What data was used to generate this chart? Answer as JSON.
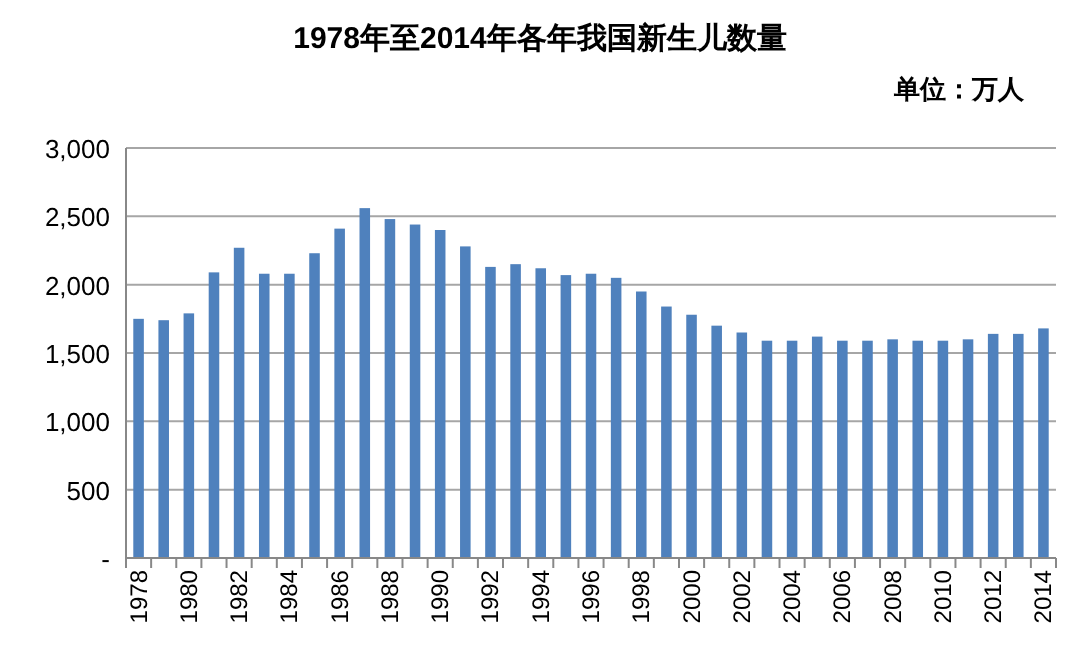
{
  "chart_data": {
    "type": "bar",
    "title": "1978年至2014年各年我国新生儿数量",
    "annotations": [
      "单位：万人"
    ],
    "categories": [
      "1978",
      null,
      "1980",
      null,
      "1982",
      null,
      "1984",
      null,
      "1986",
      null,
      "1988",
      null,
      "1990",
      null,
      "1992",
      null,
      "1994",
      null,
      "1996",
      null,
      "1998",
      null,
      "2000",
      null,
      "2002",
      null,
      "2004",
      null,
      "2006",
      null,
      "2008",
      null,
      "2010",
      null,
      "2012",
      null,
      "2014"
    ],
    "values": [
      1750,
      1740,
      1790,
      2090,
      2270,
      2080,
      2080,
      2230,
      2410,
      2560,
      2480,
      2440,
      2400,
      2280,
      2130,
      2150,
      2120,
      2070,
      2080,
      2050,
      1950,
      1840,
      1780,
      1700,
      1650,
      1590,
      1590,
      1620,
      1590,
      1590,
      1600,
      1590,
      1590,
      1600,
      1640,
      1640,
      1680
    ],
    "color": "#4f81bd",
    "ylim": [
      0,
      3000
    ],
    "yticks": [
      {
        "value": 0,
        "label": "-"
      },
      {
        "value": 500,
        "label": "500"
      },
      {
        "value": 1000,
        "label": "1,000"
      },
      {
        "value": 1500,
        "label": "1,500"
      },
      {
        "value": 2000,
        "label": "2,000"
      },
      {
        "value": 2500,
        "label": "2,500"
      },
      {
        "value": 3000,
        "label": "3,000"
      }
    ],
    "grid": "y"
  }
}
